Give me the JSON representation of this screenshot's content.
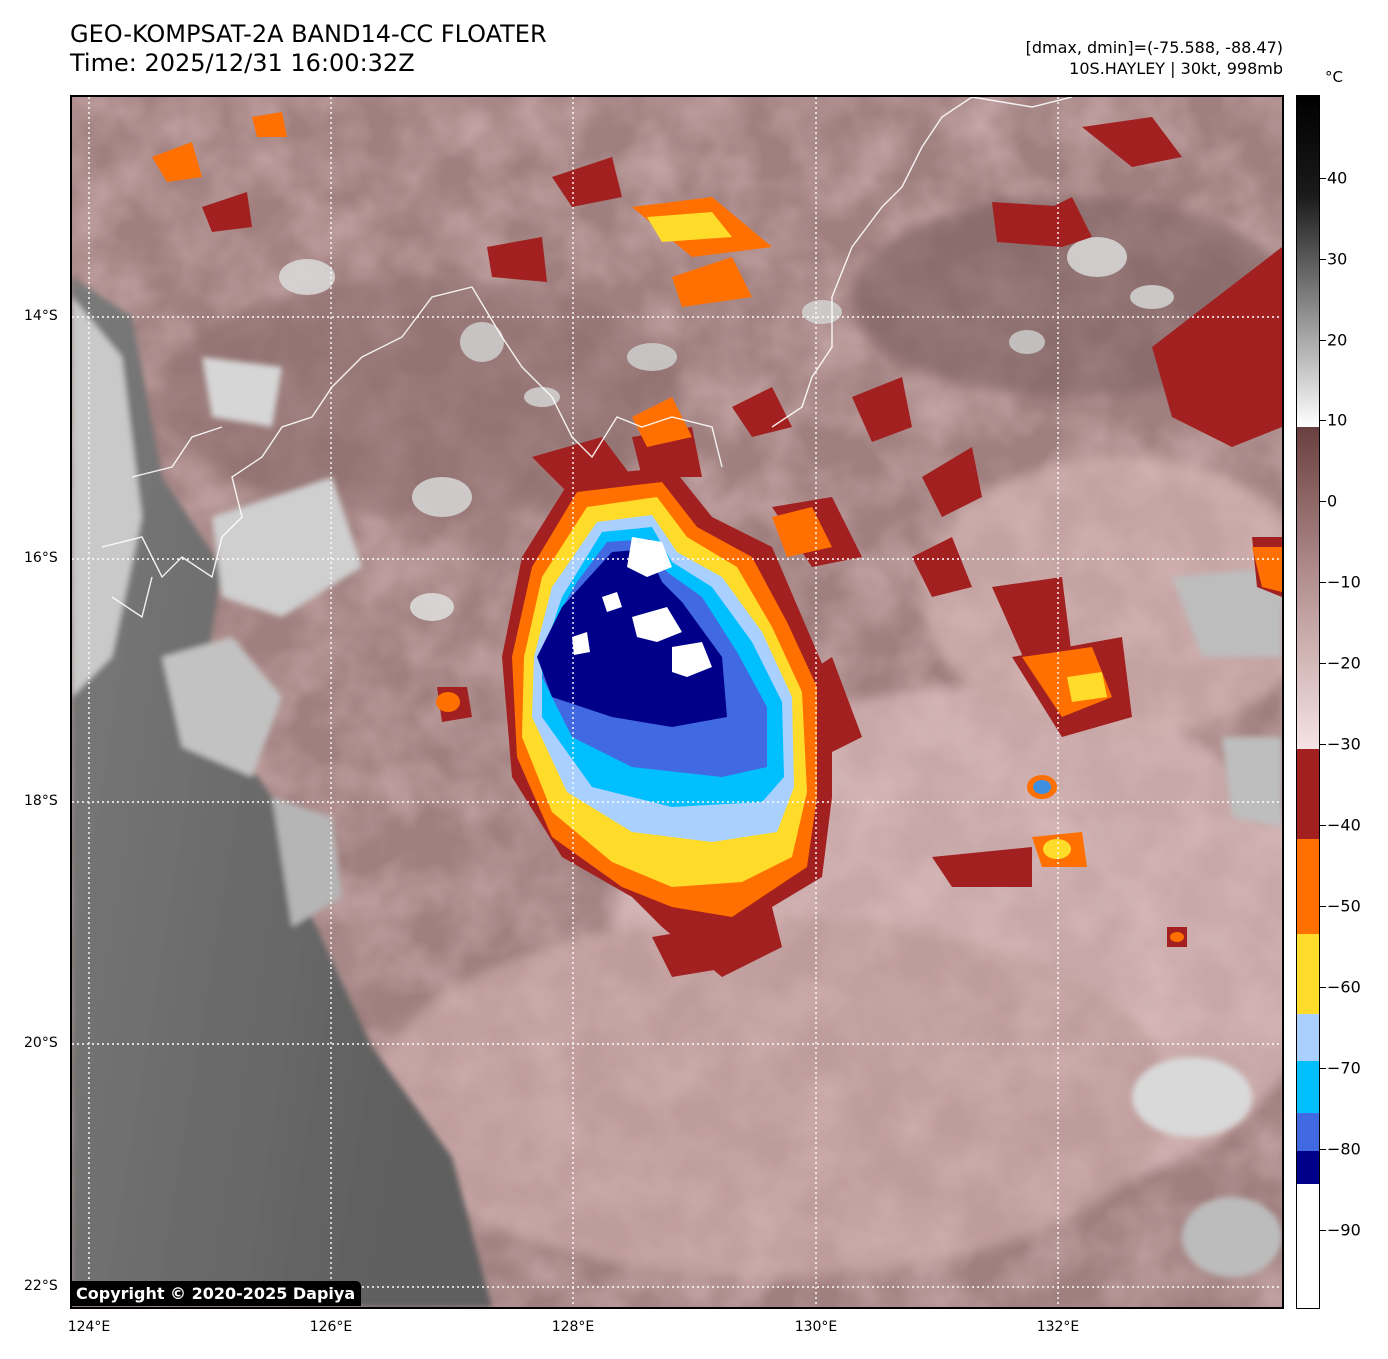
{
  "header": {
    "title_line1": "GEO-KOMPSAT-2A BAND14-CC FLOATER",
    "title_line2": "Time: 2025/12/31 16:00:32Z",
    "stats_line1": "[dmax, dmin]=(-75.588, -88.47)",
    "stats_line2": "10S.HAYLEY | 30kt, 998mb"
  },
  "map": {
    "lat_labels": [
      "14°S",
      "16°S",
      "18°S",
      "20°S",
      "22°S"
    ],
    "lon_labels": [
      "124°E",
      "126°E",
      "128°E",
      "130°E",
      "132°E"
    ]
  },
  "colorbar": {
    "unit": "°C",
    "tick_labels": [
      "40",
      "30",
      "20",
      "10",
      "0",
      "−10",
      "−20",
      "−30",
      "−40",
      "−50",
      "−60",
      "−70",
      "−80",
      "−90"
    ]
  },
  "copyright": "Copyright © 2020-2025 Dapiya"
}
